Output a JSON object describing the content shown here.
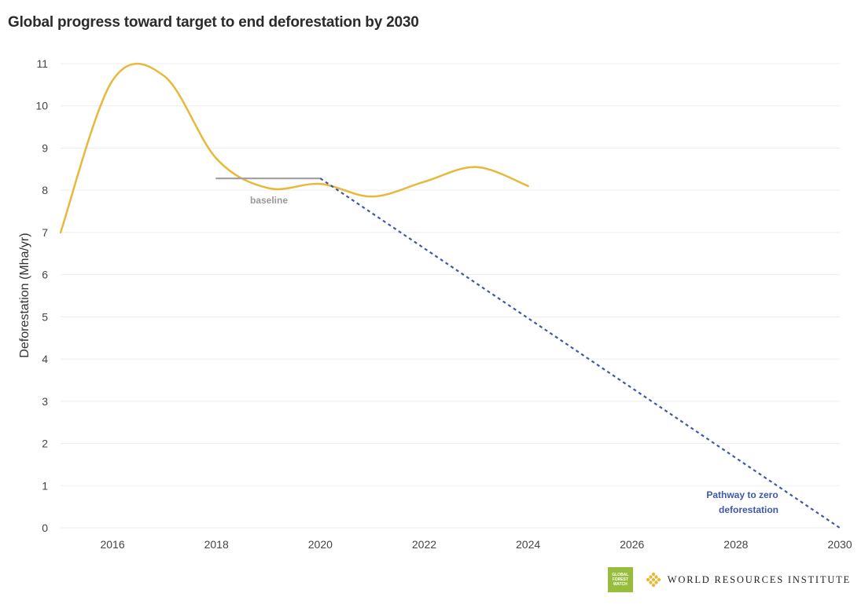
{
  "title": "Global progress toward target to end deforestation by 2030",
  "chart_data": {
    "type": "line",
    "title": "Global progress toward target to end deforestation by 2030",
    "xlabel": "",
    "ylabel": "Deforestation (Mha/yr)",
    "xlim": [
      2015,
      2030
    ],
    "ylim": [
      0,
      11
    ],
    "x_ticks": [
      "2016",
      "2018",
      "2020",
      "2022",
      "2024",
      "2026",
      "2028",
      "2030"
    ],
    "y_ticks": [
      "0",
      "1",
      "2",
      "3",
      "4",
      "5",
      "6",
      "7",
      "8",
      "9",
      "10",
      "11"
    ],
    "grid": true,
    "series": [
      {
        "name": "",
        "style": "solid",
        "color": "#e8b83a",
        "x": [
          2015,
          2016,
          2017,
          2018,
          2019,
          2020,
          2021,
          2022,
          2023,
          2024
        ],
        "y": [
          7.0,
          10.6,
          10.7,
          8.75,
          8.05,
          8.15,
          7.85,
          8.2,
          8.55,
          8.1
        ]
      },
      {
        "name": "baseline",
        "style": "solid",
        "color": "#a3a3a3",
        "x": [
          2018,
          2020
        ],
        "y": [
          8.28,
          8.28
        ]
      },
      {
        "name": "Pathway to zero deforestation",
        "style": "dashed",
        "color": "#3f57a6",
        "x": [
          2020,
          2030
        ],
        "y": [
          8.28,
          0
        ]
      }
    ],
    "annotations": {
      "baseline": "baseline",
      "pathway_line1": "Pathway to zero",
      "pathway_line2": "deforestation"
    },
    "colors": {
      "actual": "#e8b83a",
      "baseline": "#a3a3a3",
      "pathway": "#3f57a6",
      "grid": "#eeeeee"
    }
  },
  "footer": {
    "gfw_logo": [
      "GLOBAL",
      "FOREST",
      "WATCH"
    ],
    "wri_text": "World Resources Institute",
    "icons": [
      "gfw-logo-icon",
      "wri-logo-icon"
    ]
  }
}
